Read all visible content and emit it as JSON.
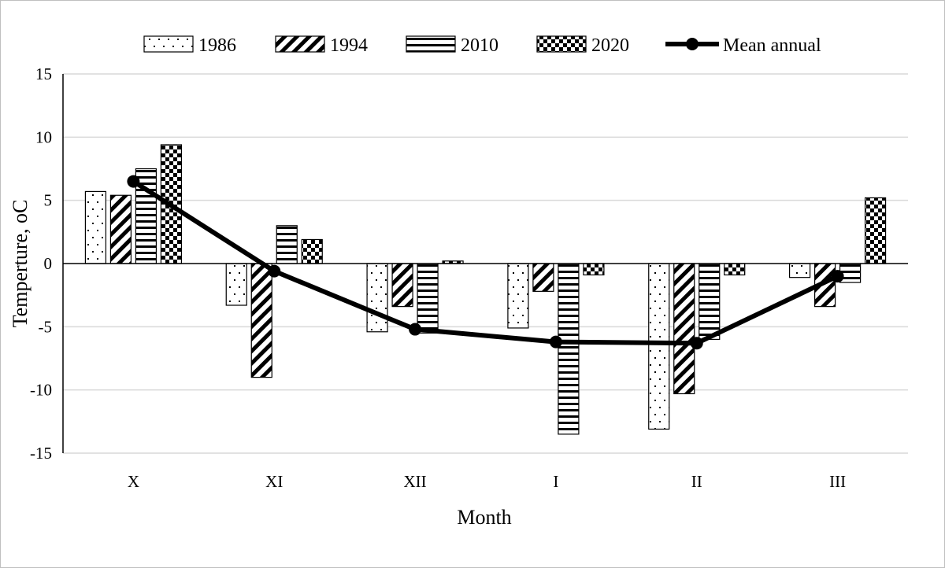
{
  "chart_data": {
    "type": "bar",
    "title": "",
    "xlabel": "Month",
    "ylabel": "Temperture, oC",
    "categories": [
      "X",
      "XI",
      "XII",
      "I",
      "II",
      "III"
    ],
    "ylim": [
      -15,
      15
    ],
    "yticks": [
      15,
      10,
      5,
      0,
      -5,
      -10,
      -15
    ],
    "grid": true,
    "legend_position": "top",
    "series": [
      {
        "name": "1986",
        "pattern": "dots",
        "values": [
          5.7,
          -3.3,
          -5.4,
          -5.1,
          -13.1,
          -1.1
        ]
      },
      {
        "name": "1994",
        "pattern": "diagonal",
        "values": [
          5.4,
          -9.0,
          -3.4,
          -2.2,
          -10.3,
          -3.4
        ]
      },
      {
        "name": "2010",
        "pattern": "horizontal",
        "values": [
          7.5,
          3.0,
          -5.5,
          -13.5,
          -6.0,
          -1.5
        ]
      },
      {
        "name": "2020",
        "pattern": "checker",
        "values": [
          9.4,
          1.9,
          0.2,
          -0.9,
          -0.9,
          5.2
        ]
      }
    ],
    "line_series": {
      "name": "Mean annual",
      "values": [
        6.5,
        -0.6,
        -5.2,
        -6.2,
        -6.3,
        -1.0
      ]
    }
  }
}
